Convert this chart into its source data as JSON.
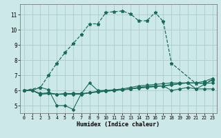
{
  "bg_color": "#cce8e8",
  "grid_color": "#aacccc",
  "line_color": "#1a6b5a",
  "xlabel": "Humidex (Indice chaleur)",
  "xlim": [
    -0.5,
    23.5
  ],
  "ylim": [
    4.5,
    11.7
  ],
  "yticks": [
    5,
    6,
    7,
    8,
    9,
    10,
    11
  ],
  "xticks": [
    0,
    1,
    2,
    3,
    4,
    5,
    6,
    7,
    8,
    9,
    10,
    11,
    12,
    13,
    14,
    15,
    16,
    17,
    18,
    19,
    20,
    21,
    22,
    23
  ],
  "series": [
    {
      "x": [
        0,
        2,
        3,
        4,
        5,
        6,
        7,
        8,
        9,
        10,
        11,
        12,
        13,
        14,
        15,
        16,
        17,
        18,
        21,
        22,
        23
      ],
      "y": [
        6.0,
        6.2,
        7.0,
        7.8,
        8.5,
        9.1,
        9.7,
        10.4,
        10.4,
        11.15,
        11.2,
        11.25,
        11.05,
        10.6,
        10.6,
        11.15,
        10.55,
        7.8,
        6.45,
        6.5,
        6.7
      ],
      "marker": "*",
      "ms": 3.5,
      "lw": 0.9,
      "ls": "--"
    },
    {
      "x": [
        0,
        1,
        2,
        3,
        4,
        5,
        6,
        7,
        8,
        9,
        10,
        11,
        12,
        13,
        14,
        15,
        16,
        17,
        18,
        19,
        20,
        21,
        22,
        23
      ],
      "y": [
        6.0,
        6.0,
        6.2,
        6.05,
        5.0,
        5.0,
        4.75,
        5.8,
        6.5,
        6.0,
        6.0,
        6.05,
        6.1,
        6.2,
        6.3,
        6.35,
        6.4,
        6.45,
        6.5,
        6.5,
        6.5,
        6.5,
        6.6,
        6.8
      ],
      "marker": "D",
      "ms": 2.0,
      "lw": 0.8,
      "ls": "-"
    },
    {
      "x": [
        0,
        1,
        2,
        3,
        4,
        5,
        6,
        7,
        8,
        9,
        10,
        11,
        12,
        13,
        14,
        15,
        16,
        17,
        18,
        19,
        20,
        21,
        22,
        23
      ],
      "y": [
        6.0,
        6.0,
        5.8,
        5.85,
        5.75,
        5.8,
        5.8,
        5.8,
        5.85,
        5.95,
        6.0,
        6.0,
        6.05,
        6.1,
        6.2,
        6.25,
        6.3,
        6.3,
        6.35,
        6.45,
        6.5,
        6.5,
        6.45,
        6.5
      ],
      "marker": "D",
      "ms": 2.0,
      "lw": 0.8,
      "ls": "-"
    },
    {
      "x": [
        0,
        1,
        2,
        3,
        4,
        5,
        6,
        7,
        8,
        9,
        10,
        11,
        12,
        13,
        14,
        15,
        16,
        17,
        18,
        19,
        20,
        21,
        22,
        23
      ],
      "y": [
        6.0,
        6.0,
        5.75,
        5.8,
        5.75,
        5.75,
        5.8,
        5.75,
        5.85,
        5.9,
        5.95,
        6.0,
        6.05,
        6.1,
        6.2,
        6.25,
        6.3,
        6.3,
        6.4,
        6.45,
        6.5,
        6.1,
        6.4,
        6.7
      ],
      "marker": "D",
      "ms": 2.0,
      "lw": 0.8,
      "ls": "-"
    },
    {
      "x": [
        0,
        1,
        2,
        3,
        4,
        5,
        6,
        7,
        8,
        9,
        10,
        11,
        12,
        13,
        14,
        15,
        16,
        17,
        18,
        19,
        20,
        21,
        22,
        23
      ],
      "y": [
        6.0,
        6.0,
        5.75,
        5.8,
        5.75,
        5.75,
        5.75,
        5.75,
        5.85,
        5.9,
        5.95,
        6.0,
        6.05,
        6.1,
        6.15,
        6.2,
        6.25,
        6.3,
        6.0,
        6.1,
        6.2,
        6.1,
        6.1,
        6.1
      ],
      "marker": "D",
      "ms": 2.0,
      "lw": 0.8,
      "ls": "-"
    }
  ]
}
